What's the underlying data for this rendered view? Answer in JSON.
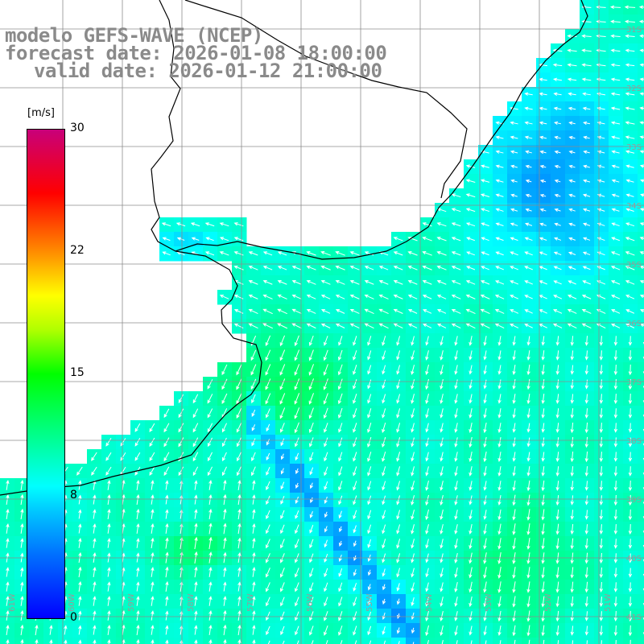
{
  "title": {
    "model": "modelo GEFS-WAVE (NCEP)",
    "forecast": "forecast date: 2026-01-08 18:00:00",
    "valid": "valid date: 2026-01-12 21:00:00"
  },
  "colorbar": {
    "unit": "[m/s]",
    "ticks": [
      "30",
      "22",
      "15",
      "8",
      "0"
    ],
    "tick_values": [
      30,
      22,
      15,
      8,
      0
    ],
    "range": [
      0,
      30
    ],
    "colors": [
      "#0000ff",
      "#0070ff",
      "#00c8ff",
      "#00ffff",
      "#00ff00",
      "#b0ff00",
      "#ffff00",
      "#ff8c00",
      "#ff0000",
      "#c8007a"
    ]
  },
  "map": {
    "background": "#ffffff",
    "land_color": "#ffffff",
    "coastline_color": "#000000",
    "grid_color": "#8c8c8c",
    "arrow_color": "#ffffff",
    "lat_labels": [
      "31S",
      "32S",
      "33S",
      "34S",
      "35S",
      "36S",
      "37S",
      "38S",
      "39S",
      "40S",
      "41S"
    ],
    "lon_labels": [
      "61W",
      "60W",
      "59W",
      "58W",
      "57W",
      "56W",
      "55W",
      "54W",
      "53W",
      "52W",
      "51W"
    ]
  }
}
